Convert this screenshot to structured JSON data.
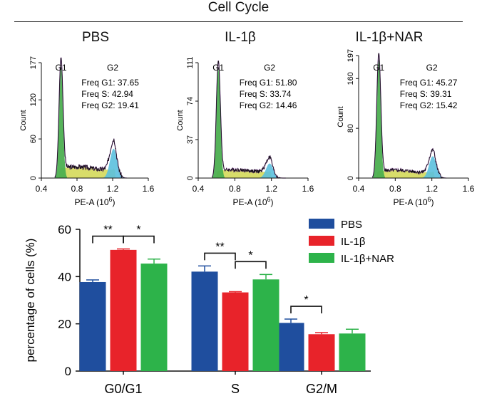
{
  "figure_title": "Cell Cycle",
  "colors": {
    "pbs": "#1f4e9e",
    "il1b": "#e8232a",
    "il1b_nar": "#2db34a",
    "g1_fill": "#4caf50",
    "s_fill": "#d4d95a",
    "g2_fill": "#5bc0de",
    "trace": "#8e44ad",
    "outline": "#111111"
  },
  "chart_data": [
    {
      "type": "area",
      "panel": "PBS",
      "title": "PBS",
      "xlabel": "PE-A",
      "xlabel_unit": "(10",
      "xlabel_exp": "6",
      "xlabel_close": ")",
      "ylabel": "Count",
      "xlim": [
        0.4,
        1.6
      ],
      "ylim": [
        0,
        177
      ],
      "x_ticks": [
        "0.4",
        "0.8",
        "1.2",
        "1.6"
      ],
      "y_ticks": [
        "0",
        "60",
        "120",
        "177"
      ],
      "y_tick_values": [
        0,
        60,
        120,
        177
      ],
      "peak_labels": [
        "G1",
        "G2"
      ],
      "peak_label_x": [
        0.62,
        1.2
      ],
      "freq_lines": [
        "Freq G1: 37.65",
        "Freq S: 42.94",
        "Freq G2: 19.41"
      ],
      "g1_peak": {
        "x": 0.62,
        "height": 170
      },
      "g2_peak": {
        "x": 1.21,
        "height": 45
      },
      "s_plateau": 15
    },
    {
      "type": "area",
      "panel": "IL-1β",
      "title": "IL-1β",
      "xlabel": "PE-A",
      "xlabel_unit": "(10",
      "xlabel_exp": "6",
      "xlabel_close": ")",
      "ylabel": "Count",
      "xlim": [
        0.4,
        1.6
      ],
      "ylim": [
        0,
        111
      ],
      "x_ticks": [
        "0.4",
        "0.8",
        "1.2",
        "1.6"
      ],
      "y_ticks": [
        "0",
        "37",
        "74",
        "111"
      ],
      "y_tick_values": [
        0,
        37,
        74,
        111
      ],
      "peak_labels": [
        "G1",
        "G2"
      ],
      "peak_label_x": [
        0.62,
        1.18
      ],
      "freq_lines": [
        "Freq G1: 51.80",
        "Freq S: 33.74",
        "Freq G2: 14.46"
      ],
      "g1_peak": {
        "x": 0.62,
        "height": 106
      },
      "g2_peak": {
        "x": 1.18,
        "height": 14
      },
      "s_plateau": 7
    },
    {
      "type": "area",
      "panel": "IL-1β+NAR",
      "title": "IL-1β+NAR",
      "xlabel": "PE-A",
      "xlabel_unit": "(10",
      "xlabel_exp": "6",
      "xlabel_close": ")",
      "ylabel": "Count",
      "xlim": [
        0.4,
        1.6
      ],
      "ylim": [
        0,
        197
      ],
      "x_ticks": [
        "0.4",
        "0.8",
        "1.2",
        "1.6"
      ],
      "y_ticks": [
        "0",
        "80",
        "160",
        "197"
      ],
      "y_tick_values": [
        0,
        80,
        160,
        197
      ],
      "peak_labels": [
        "G1",
        "G2"
      ],
      "peak_label_x": [
        0.62,
        1.2
      ],
      "freq_lines": [
        "Freq G1: 45.27",
        "Freq S: 39.31",
        "Freq G2: 15.42"
      ],
      "g1_peak": {
        "x": 0.62,
        "height": 190
      },
      "g2_peak": {
        "x": 1.21,
        "height": 35
      },
      "s_plateau": 11
    },
    {
      "type": "bar",
      "categories": [
        "G0/G1",
        "S",
        "G2/M"
      ],
      "series": [
        {
          "name": "PBS",
          "values": [
            37.7,
            42.1,
            20.4
          ],
          "errors": [
            0.9,
            2.4,
            1.6
          ]
        },
        {
          "name": "IL-1β",
          "values": [
            51.3,
            33.3,
            15.6
          ],
          "errors": [
            0.4,
            0.3,
            0.7
          ]
        },
        {
          "name": "IL-1β+NAR",
          "values": [
            45.5,
            38.8,
            15.9
          ],
          "errors": [
            1.9,
            2.1,
            1.8
          ]
        }
      ],
      "ylabel": "percentage of cells (%)",
      "ylim": [
        0,
        60
      ],
      "y_ticks": [
        "0",
        "20",
        "40",
        "60"
      ],
      "y_tick_values": [
        0,
        20,
        40,
        60
      ],
      "significance": [
        {
          "category": 0,
          "from": 0,
          "to": 1,
          "label": "**"
        },
        {
          "category": 0,
          "from": 1,
          "to": 2,
          "label": "*"
        },
        {
          "category": 1,
          "from": 0,
          "to": 1,
          "label": "**"
        },
        {
          "category": 1,
          "from": 1,
          "to": 2,
          "label": "*"
        },
        {
          "category": 2,
          "from": 0,
          "to": 1,
          "label": "*"
        }
      ],
      "legend_position": "top-right"
    }
  ]
}
